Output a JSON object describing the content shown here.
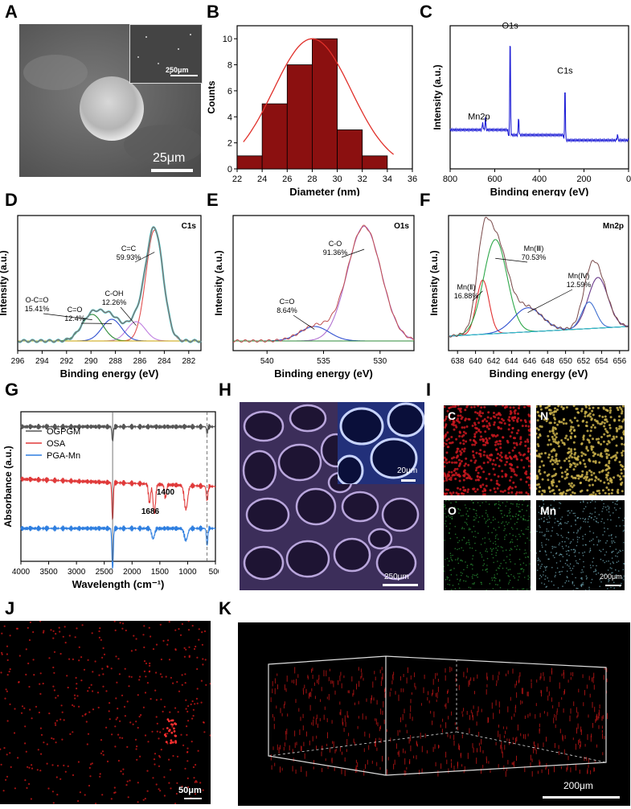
{
  "panels": {
    "A": {
      "letter": "A",
      "scale_bar": "25μm",
      "inset_scale_bar": "250μm"
    },
    "B": {
      "letter": "B"
    },
    "C": {
      "letter": "C"
    },
    "D": {
      "letter": "D"
    },
    "E": {
      "letter": "E"
    },
    "F": {
      "letter": "F"
    },
    "G": {
      "letter": "G"
    },
    "H": {
      "letter": "H",
      "scale_bar": "250μm",
      "inset_scale_bar": "20μm"
    },
    "I": {
      "letter": "I",
      "tiles": [
        "C",
        "N",
        "O",
        "Mn"
      ],
      "scale_bar": "200μm",
      "tile_colors": [
        "#c8181e",
        "#c9b04a",
        "#2e9e3a",
        "#7ab6c4"
      ]
    },
    "J": {
      "letter": "J",
      "scale_bar": "50μm"
    },
    "K": {
      "letter": "K",
      "scale_bar": "200μm"
    }
  },
  "chart_data": [
    {
      "id": "B",
      "type": "bar",
      "xlabel": "Diameter (nm)",
      "ylabel": "Counts",
      "bin_edges": [
        22,
        24,
        26,
        28,
        30,
        32,
        34
      ],
      "values": [
        1,
        5,
        8,
        10,
        3,
        1
      ],
      "xlim": [
        22,
        36
      ],
      "ylim": [
        0,
        11
      ],
      "xticks": [
        "22",
        "24",
        "26",
        "28",
        "30",
        "32",
        "34",
        "36"
      ],
      "yticks": [
        "0",
        "2",
        "4",
        "6",
        "8",
        "10"
      ],
      "bar_color": "#8b1010",
      "fit_color": "#e0302a",
      "fit": {
        "mean": 28,
        "sd": 3.1,
        "peak": 10
      }
    },
    {
      "id": "C",
      "type": "line",
      "xlabel": "Binding energy (eV)",
      "ylabel": "Intensity (a.u.)",
      "xlim": [
        800,
        0
      ],
      "reversed_x": true,
      "xticks": [
        "800",
        "600",
        "400",
        "200",
        "0"
      ],
      "color": "#1f1fd6",
      "annotations": [
        {
          "text": "O1s",
          "x": 531
        },
        {
          "text": "C1s",
          "x": 285
        },
        {
          "text": "Mn2p",
          "x": 642
        }
      ],
      "peaks": [
        {
          "x": 531,
          "h": 1.0
        },
        {
          "x": 285,
          "h": 0.55
        },
        {
          "x": 642,
          "h": 0.12
        },
        {
          "x": 654,
          "h": 0.08
        },
        {
          "x": 493,
          "h": 0.18
        },
        {
          "x": 50,
          "h": 0.06
        }
      ]
    },
    {
      "id": "D",
      "type": "line",
      "title": "C1s",
      "xlabel": "Binding energy (eV)",
      "ylabel": "Intensity (a.u.)",
      "xlim": [
        296,
        281
      ],
      "reversed_x": true,
      "xticks": [
        "296",
        "294",
        "292",
        "290",
        "288",
        "286",
        "284",
        "282"
      ],
      "components": [
        {
          "name": "C=C",
          "percent": "59.93%",
          "center": 284.8,
          "height": 0.92,
          "width": 0.7,
          "color": "#e05050"
        },
        {
          "name": "C-OH",
          "percent": "12.26%",
          "center": 286.3,
          "height": 0.16,
          "width": 0.75,
          "color": "#c080e0"
        },
        {
          "name": "C=O",
          "percent": "12.4%",
          "center": 288.3,
          "height": 0.18,
          "width": 0.8,
          "color": "#3050d0"
        },
        {
          "name": "O-C=O",
          "percent": "15.41%",
          "center": 289.9,
          "height": 0.22,
          "width": 0.85,
          "color": "#2e8b3a"
        }
      ],
      "envelope_color": "#9a6060",
      "fit_color": "#35c4c4",
      "baseline_color": "#c8a000"
    },
    {
      "id": "E",
      "type": "line",
      "title": "O1s",
      "xlabel": "Binding energy (eV)",
      "ylabel": "Intensity (a.u.)",
      "xlim": [
        543,
        527
      ],
      "reversed_x": true,
      "xticks": [
        "540",
        "535",
        "530"
      ],
      "components": [
        {
          "name": "C-O",
          "percent": "91.36%",
          "center": 531.4,
          "height": 0.95,
          "width": 1.5,
          "color": "#b070d0"
        },
        {
          "name": "C=O",
          "percent": "8.64%",
          "center": 535.8,
          "height": 0.12,
          "width": 1.3,
          "color": "#3050d0"
        }
      ],
      "envelope_color": "#c05050",
      "baseline_color": "#2e8b3a"
    },
    {
      "id": "F",
      "type": "line",
      "title": "Mn2p",
      "xlabel": "Binding energy (eV)",
      "ylabel": "Intensity (a.u.)",
      "xlim": [
        637,
        657
      ],
      "xticks": [
        "638",
        "640",
        "642",
        "644",
        "646",
        "648",
        "650",
        "652",
        "654",
        "656"
      ],
      "components": [
        {
          "name": "Mn(Ⅱ)",
          "percent": "16.88%",
          "center": 640.8,
          "height": 0.45,
          "width": 0.7,
          "color": "#e03030"
        },
        {
          "name": "Mn(Ⅲ)",
          "percent": "70.53%",
          "center": 642.2,
          "height": 0.78,
          "width": 1.3,
          "color": "#2ea84a"
        },
        {
          "name": "Mn(Ⅳ)",
          "percent": "12.59%",
          "center": 645.8,
          "height": 0.2,
          "width": 1.6,
          "color": "#3050d0"
        },
        {
          "name": "",
          "percent": "",
          "center": 653.6,
          "height": 0.42,
          "width": 1.1,
          "color": "#6a3a8a"
        },
        {
          "name": "",
          "percent": "",
          "center": 652.6,
          "height": 0.22,
          "width": 0.8,
          "color": "#4070d0"
        }
      ],
      "envelope_color": "#7a4a4a",
      "baseline_color": "#30c0c8"
    },
    {
      "id": "G",
      "type": "line",
      "xlabel": "Wavelength (cm⁻¹)",
      "ylabel": "Absorbance (a.u.)",
      "xlim": [
        4000,
        500
      ],
      "reversed_x": true,
      "xticks": [
        "4000",
        "3500",
        "3000",
        "2500",
        "2000",
        "1500",
        "1000",
        "500"
      ],
      "series": [
        {
          "name": "OGPGM",
          "color": "#555555",
          "offset": 0.9
        },
        {
          "name": "OSA",
          "color": "#e03a3a",
          "offset": 0.55
        },
        {
          "name": "PGA-Mn",
          "color": "#2f7fe0",
          "offset": 0.22
        }
      ],
      "annotations": [
        {
          "text": "1686",
          "x": 1686
        },
        {
          "text": "1400",
          "x": 1400
        }
      ],
      "marker_lines": [
        2350,
        650
      ]
    }
  ]
}
